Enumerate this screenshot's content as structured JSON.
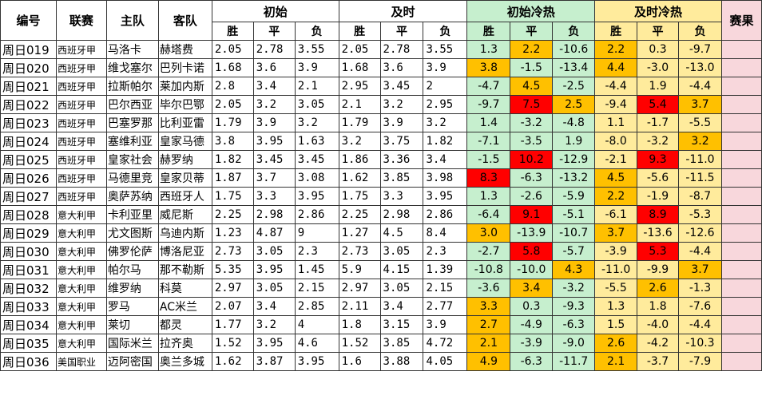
{
  "headers": {
    "id": "编号",
    "league": "联赛",
    "home": "主队",
    "away": "客队",
    "initial": "初始",
    "live": "及时",
    "initial_heat": "初始冷热",
    "live_heat": "及时冷热",
    "result": "赛果",
    "win": "胜",
    "draw": "平",
    "lose": "负"
  },
  "colors": {
    "green_band": "#c6efce",
    "yellow_band": "#ffeb9c",
    "result_band": "#f8d7dc",
    "orange": "#ffc000",
    "red": "#ff0000"
  },
  "rows": [
    {
      "id": "周日019",
      "league": "西班牙甲",
      "home": "马洛卡",
      "away": "赫塔费",
      "init": [
        "2.05",
        "2.78",
        "3.55"
      ],
      "live": [
        "2.05",
        "2.78",
        "3.55"
      ],
      "ih": [
        "1.3",
        "2.2",
        "-10.6"
      ],
      "lh": [
        "2.2",
        "0.3",
        "-9.7"
      ],
      "ihc": [
        "",
        "orange",
        ""
      ],
      "lhc": [
        "orange",
        "",
        ""
      ]
    },
    {
      "id": "周日020",
      "league": "西班牙甲",
      "home": "维戈塞尔",
      "away": "巴列卡诺",
      "init": [
        "1.68",
        "3.6",
        "3.9"
      ],
      "live": [
        "1.68",
        "3.6",
        "3.9"
      ],
      "ih": [
        "3.8",
        "-1.5",
        "-13.4"
      ],
      "lh": [
        "4.4",
        "-3.0",
        "-13.0"
      ],
      "ihc": [
        "orange",
        "",
        ""
      ],
      "lhc": [
        "orange",
        "",
        ""
      ]
    },
    {
      "id": "周日021",
      "league": "西班牙甲",
      "home": "拉斯帕尔",
      "away": "莱加内斯",
      "init": [
        "2.8",
        "3.4",
        "2.1"
      ],
      "live": [
        "2.95",
        "3.45",
        "2"
      ],
      "ih": [
        "-4.7",
        "4.5",
        "-2.5"
      ],
      "lh": [
        "-4.4",
        "1.9",
        "-4.4"
      ],
      "ihc": [
        "",
        "orange",
        ""
      ],
      "lhc": [
        "",
        "",
        ""
      ]
    },
    {
      "id": "周日022",
      "league": "西班牙甲",
      "home": "巴尔西亚",
      "away": "毕尔巴鄂",
      "init": [
        "2.05",
        "3.2",
        "3.05"
      ],
      "live": [
        "2.1",
        "3.2",
        "2.95"
      ],
      "ih": [
        "-9.7",
        "7.5",
        "2.5"
      ],
      "lh": [
        "-9.4",
        "5.4",
        "3.7"
      ],
      "ihc": [
        "",
        "red",
        "orange"
      ],
      "lhc": [
        "",
        "red",
        "orange"
      ]
    },
    {
      "id": "周日023",
      "league": "西班牙甲",
      "home": "巴塞罗那",
      "away": "比利亚雷",
      "init": [
        "1.79",
        "3.9",
        "3.2"
      ],
      "live": [
        "1.79",
        "3.9",
        "3.2"
      ],
      "ih": [
        "1.4",
        "-3.2",
        "-4.8"
      ],
      "lh": [
        "1.1",
        "-1.7",
        "-5.5"
      ],
      "ihc": [
        "",
        "",
        ""
      ],
      "lhc": [
        "",
        "",
        ""
      ]
    },
    {
      "id": "周日024",
      "league": "西班牙甲",
      "home": "塞维利亚",
      "away": "皇家马德",
      "init": [
        "3.8",
        "3.95",
        "1.63"
      ],
      "live": [
        "3.2",
        "3.75",
        "1.82"
      ],
      "ih": [
        "-7.1",
        "-3.5",
        "1.9"
      ],
      "lh": [
        "-8.0",
        "-3.2",
        "3.2"
      ],
      "ihc": [
        "",
        "",
        ""
      ],
      "lhc": [
        "",
        "",
        "orange"
      ]
    },
    {
      "id": "周日025",
      "league": "西班牙甲",
      "home": "皇家社会",
      "away": "赫罗纳",
      "init": [
        "1.82",
        "3.45",
        "3.45"
      ],
      "live": [
        "1.86",
        "3.36",
        "3.4"
      ],
      "ih": [
        "-1.5",
        "10.2",
        "-12.9"
      ],
      "lh": [
        "-2.1",
        "9.3",
        "-11.0"
      ],
      "ihc": [
        "",
        "red",
        ""
      ],
      "lhc": [
        "",
        "red",
        ""
      ]
    },
    {
      "id": "周日026",
      "league": "西班牙甲",
      "home": "马德里竞",
      "away": "皇家贝蒂",
      "init": [
        "1.87",
        "3.7",
        "3.08"
      ],
      "live": [
        "1.62",
        "3.85",
        "3.98"
      ],
      "ih": [
        "8.3",
        "-6.3",
        "-13.2"
      ],
      "lh": [
        "4.5",
        "-5.6",
        "-11.5"
      ],
      "ihc": [
        "red",
        "",
        ""
      ],
      "lhc": [
        "orange",
        "",
        ""
      ]
    },
    {
      "id": "周日027",
      "league": "西班牙甲",
      "home": "奥萨苏纳",
      "away": "西班牙人",
      "init": [
        "1.75",
        "3.3",
        "3.95"
      ],
      "live": [
        "1.75",
        "3.3",
        "3.95"
      ],
      "ih": [
        "1.3",
        "-2.6",
        "-5.9"
      ],
      "lh": [
        "2.2",
        "-1.9",
        "-8.7"
      ],
      "ihc": [
        "",
        "",
        ""
      ],
      "lhc": [
        "orange",
        "",
        ""
      ]
    },
    {
      "id": "周日028",
      "league": "意大利甲",
      "home": "卡利亚里",
      "away": "威尼斯",
      "init": [
        "2.25",
        "2.98",
        "2.86"
      ],
      "live": [
        "2.25",
        "2.98",
        "2.86"
      ],
      "ih": [
        "-6.4",
        "9.1",
        "-5.1"
      ],
      "lh": [
        "-6.1",
        "8.9",
        "-5.3"
      ],
      "ihc": [
        "",
        "red",
        ""
      ],
      "lhc": [
        "",
        "red",
        ""
      ]
    },
    {
      "id": "周日029",
      "league": "意大利甲",
      "home": "尤文图斯",
      "away": "乌迪内斯",
      "init": [
        "1.23",
        "4.87",
        "9"
      ],
      "live": [
        "1.27",
        "4.5",
        "8.4"
      ],
      "ih": [
        "3.0",
        "-13.9",
        "-10.7"
      ],
      "lh": [
        "3.7",
        "-13.6",
        "-12.6"
      ],
      "ihc": [
        "orange",
        "",
        ""
      ],
      "lhc": [
        "orange",
        "",
        ""
      ]
    },
    {
      "id": "周日030",
      "league": "意大利甲",
      "home": "佛罗伦萨",
      "away": "博洛尼亚",
      "init": [
        "2.73",
        "3.05",
        "2.3"
      ],
      "live": [
        "2.73",
        "3.05",
        "2.3"
      ],
      "ih": [
        "-2.7",
        "5.8",
        "-5.7"
      ],
      "lh": [
        "-3.9",
        "5.3",
        "-4.4"
      ],
      "ihc": [
        "",
        "red",
        ""
      ],
      "lhc": [
        "",
        "red",
        ""
      ]
    },
    {
      "id": "周日031",
      "league": "意大利甲",
      "home": "帕尔马",
      "away": "那不勒斯",
      "init": [
        "5.35",
        "3.95",
        "1.45"
      ],
      "live": [
        "5.9",
        "4.15",
        "1.39"
      ],
      "ih": [
        "-10.8",
        "-10.0",
        "4.3"
      ],
      "lh": [
        "-11.0",
        "-9.9",
        "3.7"
      ],
      "ihc": [
        "",
        "",
        "orange"
      ],
      "lhc": [
        "",
        "",
        "orange"
      ]
    },
    {
      "id": "周日032",
      "league": "意大利甲",
      "home": "维罗纳",
      "away": "科莫",
      "init": [
        "2.97",
        "3.05",
        "2.15"
      ],
      "live": [
        "2.97",
        "3.05",
        "2.15"
      ],
      "ih": [
        "-3.6",
        "3.4",
        "-3.2"
      ],
      "lh": [
        "-5.5",
        "2.6",
        "-1.3"
      ],
      "ihc": [
        "",
        "orange",
        ""
      ],
      "lhc": [
        "",
        "orange",
        ""
      ]
    },
    {
      "id": "周日033",
      "league": "意大利甲",
      "home": "罗马",
      "away": "AC米兰",
      "init": [
        "2.07",
        "3.4",
        "2.85"
      ],
      "live": [
        "2.11",
        "3.4",
        "2.77"
      ],
      "ih": [
        "3.3",
        "0.3",
        "-9.3"
      ],
      "lh": [
        "1.3",
        "1.8",
        "-7.6"
      ],
      "ihc": [
        "orange",
        "",
        ""
      ],
      "lhc": [
        "",
        "",
        ""
      ]
    },
    {
      "id": "周日034",
      "league": "意大利甲",
      "home": "莱切",
      "away": "都灵",
      "init": [
        "1.77",
        "3.2",
        "4"
      ],
      "live": [
        "1.8",
        "3.15",
        "3.9"
      ],
      "ih": [
        "2.7",
        "-4.9",
        "-6.3"
      ],
      "lh": [
        "1.5",
        "-4.0",
        "-4.4"
      ],
      "ihc": [
        "orange",
        "",
        ""
      ],
      "lhc": [
        "",
        "",
        ""
      ]
    },
    {
      "id": "周日035",
      "league": "意大利甲",
      "home": "国际米兰",
      "away": "拉齐奥",
      "init": [
        "1.52",
        "3.95",
        "4.6"
      ],
      "live": [
        "1.52",
        "3.85",
        "4.72"
      ],
      "ih": [
        "2.1",
        "-3.9",
        "-9.0"
      ],
      "lh": [
        "2.6",
        "-4.2",
        "-10.3"
      ],
      "ihc": [
        "orange",
        "",
        ""
      ],
      "lhc": [
        "orange",
        "",
        ""
      ]
    },
    {
      "id": "周日036",
      "league": "美国职业",
      "home": "迈阿密国",
      "away": "奥兰多城",
      "init": [
        "1.62",
        "3.87",
        "3.95"
      ],
      "live": [
        "1.6",
        "3.88",
        "4.05"
      ],
      "ih": [
        "4.9",
        "-6.3",
        "-11.7"
      ],
      "lh": [
        "2.1",
        "-3.7",
        "-7.9"
      ],
      "ihc": [
        "orange",
        "",
        ""
      ],
      "lhc": [
        "orange",
        "",
        ""
      ]
    }
  ]
}
